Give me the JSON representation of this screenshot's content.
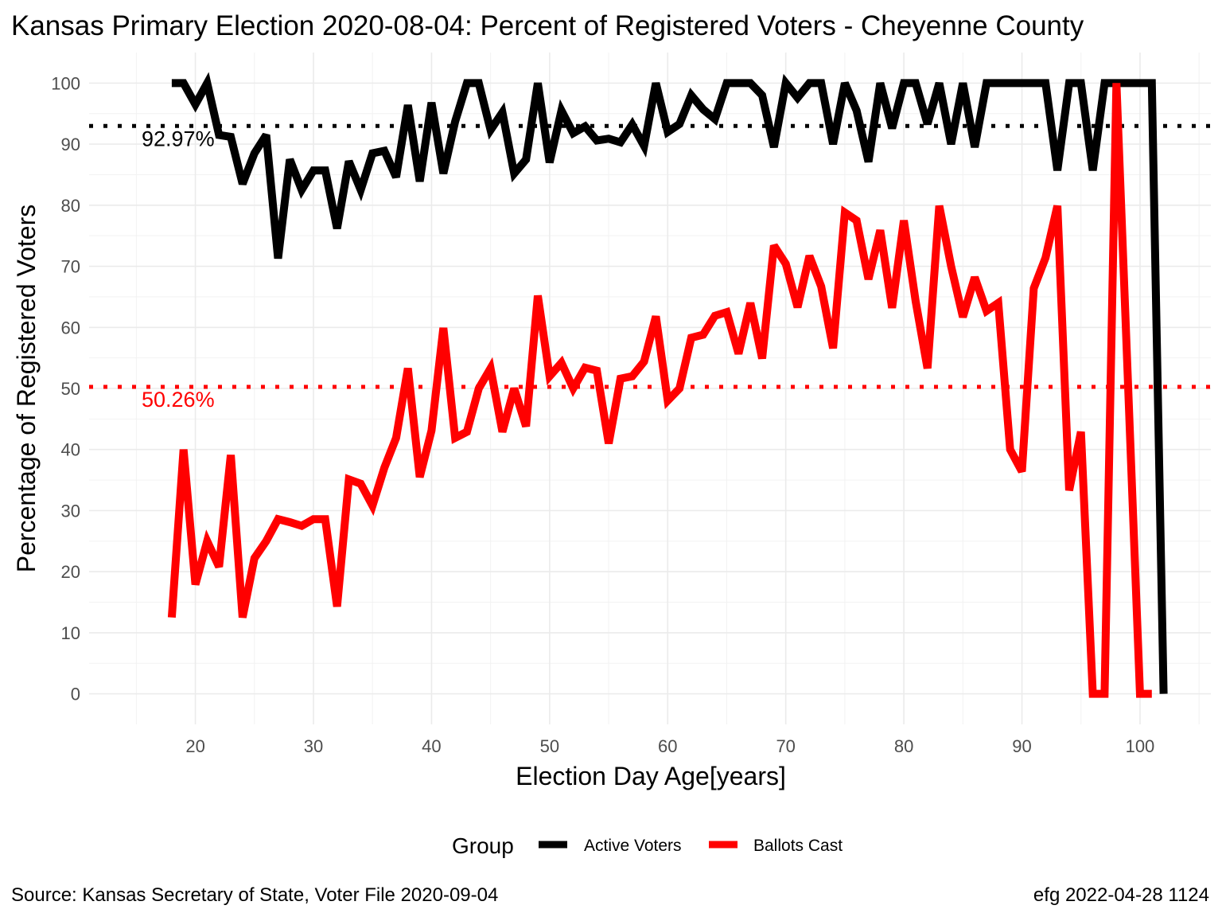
{
  "chart_data": {
    "type": "line",
    "title": "Kansas Primary Election 2020-08-04:  Percent of Registered Voters - Cheyenne County",
    "xlabel": "Election Day Age[years]",
    "ylabel": "Percentage of Registered Voters",
    "xlim": [
      11,
      106
    ],
    "ylim": [
      -5,
      105
    ],
    "x_ticks": [
      20,
      30,
      40,
      50,
      60,
      70,
      80,
      90,
      100
    ],
    "y_ticks": [
      0,
      10,
      20,
      30,
      40,
      50,
      60,
      70,
      80,
      90,
      100
    ],
    "grid": true,
    "legend": {
      "title": "Group",
      "position": "bottom",
      "entries": [
        "Active Voters",
        "Ballots Cast"
      ]
    },
    "series": [
      {
        "name": "Active Voters",
        "color": "#000000",
        "x": [
          18,
          19,
          20,
          21,
          22,
          23,
          24,
          25,
          26,
          27,
          28,
          29,
          30,
          31,
          32,
          33,
          34,
          35,
          36,
          37,
          38,
          39,
          40,
          41,
          42,
          43,
          44,
          45,
          46,
          47,
          48,
          49,
          50,
          51,
          52,
          53,
          54,
          55,
          56,
          57,
          58,
          59,
          60,
          61,
          62,
          63,
          64,
          65,
          66,
          67,
          68,
          69,
          70,
          71,
          72,
          73,
          74,
          75,
          76,
          77,
          78,
          79,
          80,
          81,
          82,
          83,
          84,
          85,
          86,
          87,
          88,
          89,
          90,
          91,
          92,
          93,
          94,
          95,
          96,
          97,
          98,
          99,
          100,
          101,
          102
        ],
        "values": [
          100,
          100,
          96.5,
          100,
          91.5,
          91.2,
          83.5,
          88.5,
          91.5,
          71.3,
          87.5,
          82.5,
          85.7,
          85.7,
          76.2,
          87.2,
          82.5,
          88.5,
          88.9,
          84.6,
          96.4,
          83.9,
          96.8,
          85.2,
          93.7,
          100,
          100,
          92.3,
          95.2,
          85.2,
          87.5,
          100,
          87,
          95.5,
          91.8,
          92.9,
          90.6,
          90.9,
          90.3,
          93.2,
          89.7,
          100,
          92,
          93.3,
          98,
          95.7,
          94.1,
          100,
          100,
          100,
          98,
          89.5,
          100,
          97.6,
          100,
          100,
          90,
          100,
          95.5,
          87.1,
          100,
          92.6,
          100,
          100,
          93.3,
          100,
          90,
          100,
          89.5,
          100,
          100,
          100,
          100,
          100,
          100,
          85.7,
          100,
          100,
          85.7,
          100,
          100,
          100,
          100,
          100,
          0
        ]
      },
      {
        "name": "Ballots Cast",
        "color": "#ff0000",
        "x": [
          18,
          19,
          20,
          21,
          22,
          23,
          24,
          25,
          26,
          27,
          28,
          29,
          30,
          31,
          32,
          33,
          34,
          35,
          36,
          37,
          38,
          39,
          40,
          41,
          42,
          43,
          44,
          45,
          46,
          47,
          48,
          49,
          50,
          51,
          52,
          53,
          54,
          55,
          56,
          57,
          58,
          59,
          60,
          61,
          62,
          63,
          64,
          65,
          66,
          67,
          68,
          69,
          70,
          71,
          72,
          73,
          74,
          75,
          76,
          77,
          78,
          79,
          80,
          81,
          82,
          83,
          84,
          85,
          86,
          87,
          88,
          89,
          90,
          91,
          92,
          93,
          94,
          95,
          96,
          97,
          98,
          99,
          100,
          101,
          102
        ],
        "values": [
          12.5,
          40,
          17.9,
          25,
          20.8,
          39.1,
          12.5,
          22.2,
          25,
          28.6,
          28.1,
          27.5,
          28.6,
          28.6,
          14.3,
          35.1,
          34.4,
          30.8,
          37,
          41.9,
          53.3,
          35.5,
          43.1,
          59.9,
          41.9,
          42.9,
          50,
          53.3,
          42.9,
          50,
          43.8,
          65.2,
          52,
          54.2,
          50,
          53.4,
          52.9,
          41,
          51.6,
          52,
          54.4,
          61.8,
          48,
          50,
          58.3,
          58.8,
          61.9,
          62.5,
          55.7,
          64,
          54.9,
          73.4,
          70.4,
          63.3,
          71.7,
          66.7,
          56.6,
          78.8,
          77.5,
          67.9,
          75.9,
          63.2,
          77.5,
          64.3,
          53.3,
          79.9,
          70,
          61.7,
          68.2,
          62.7,
          64,
          40,
          36.4,
          66.4,
          71.4,
          79.9,
          33.3,
          42.9,
          0,
          0,
          100,
          50,
          0,
          0,
          null
        ]
      }
    ],
    "reference_lines": [
      {
        "label": "92.97%",
        "value": 92.97,
        "color": "#000000"
      },
      {
        "label": "50.26%",
        "value": 50.26,
        "color": "#ff0000"
      }
    ],
    "caption_left": "Source:  Kansas Secretary of State, Voter File  2020-09-04",
    "caption_right": "efg 2022-04-28 1124"
  }
}
